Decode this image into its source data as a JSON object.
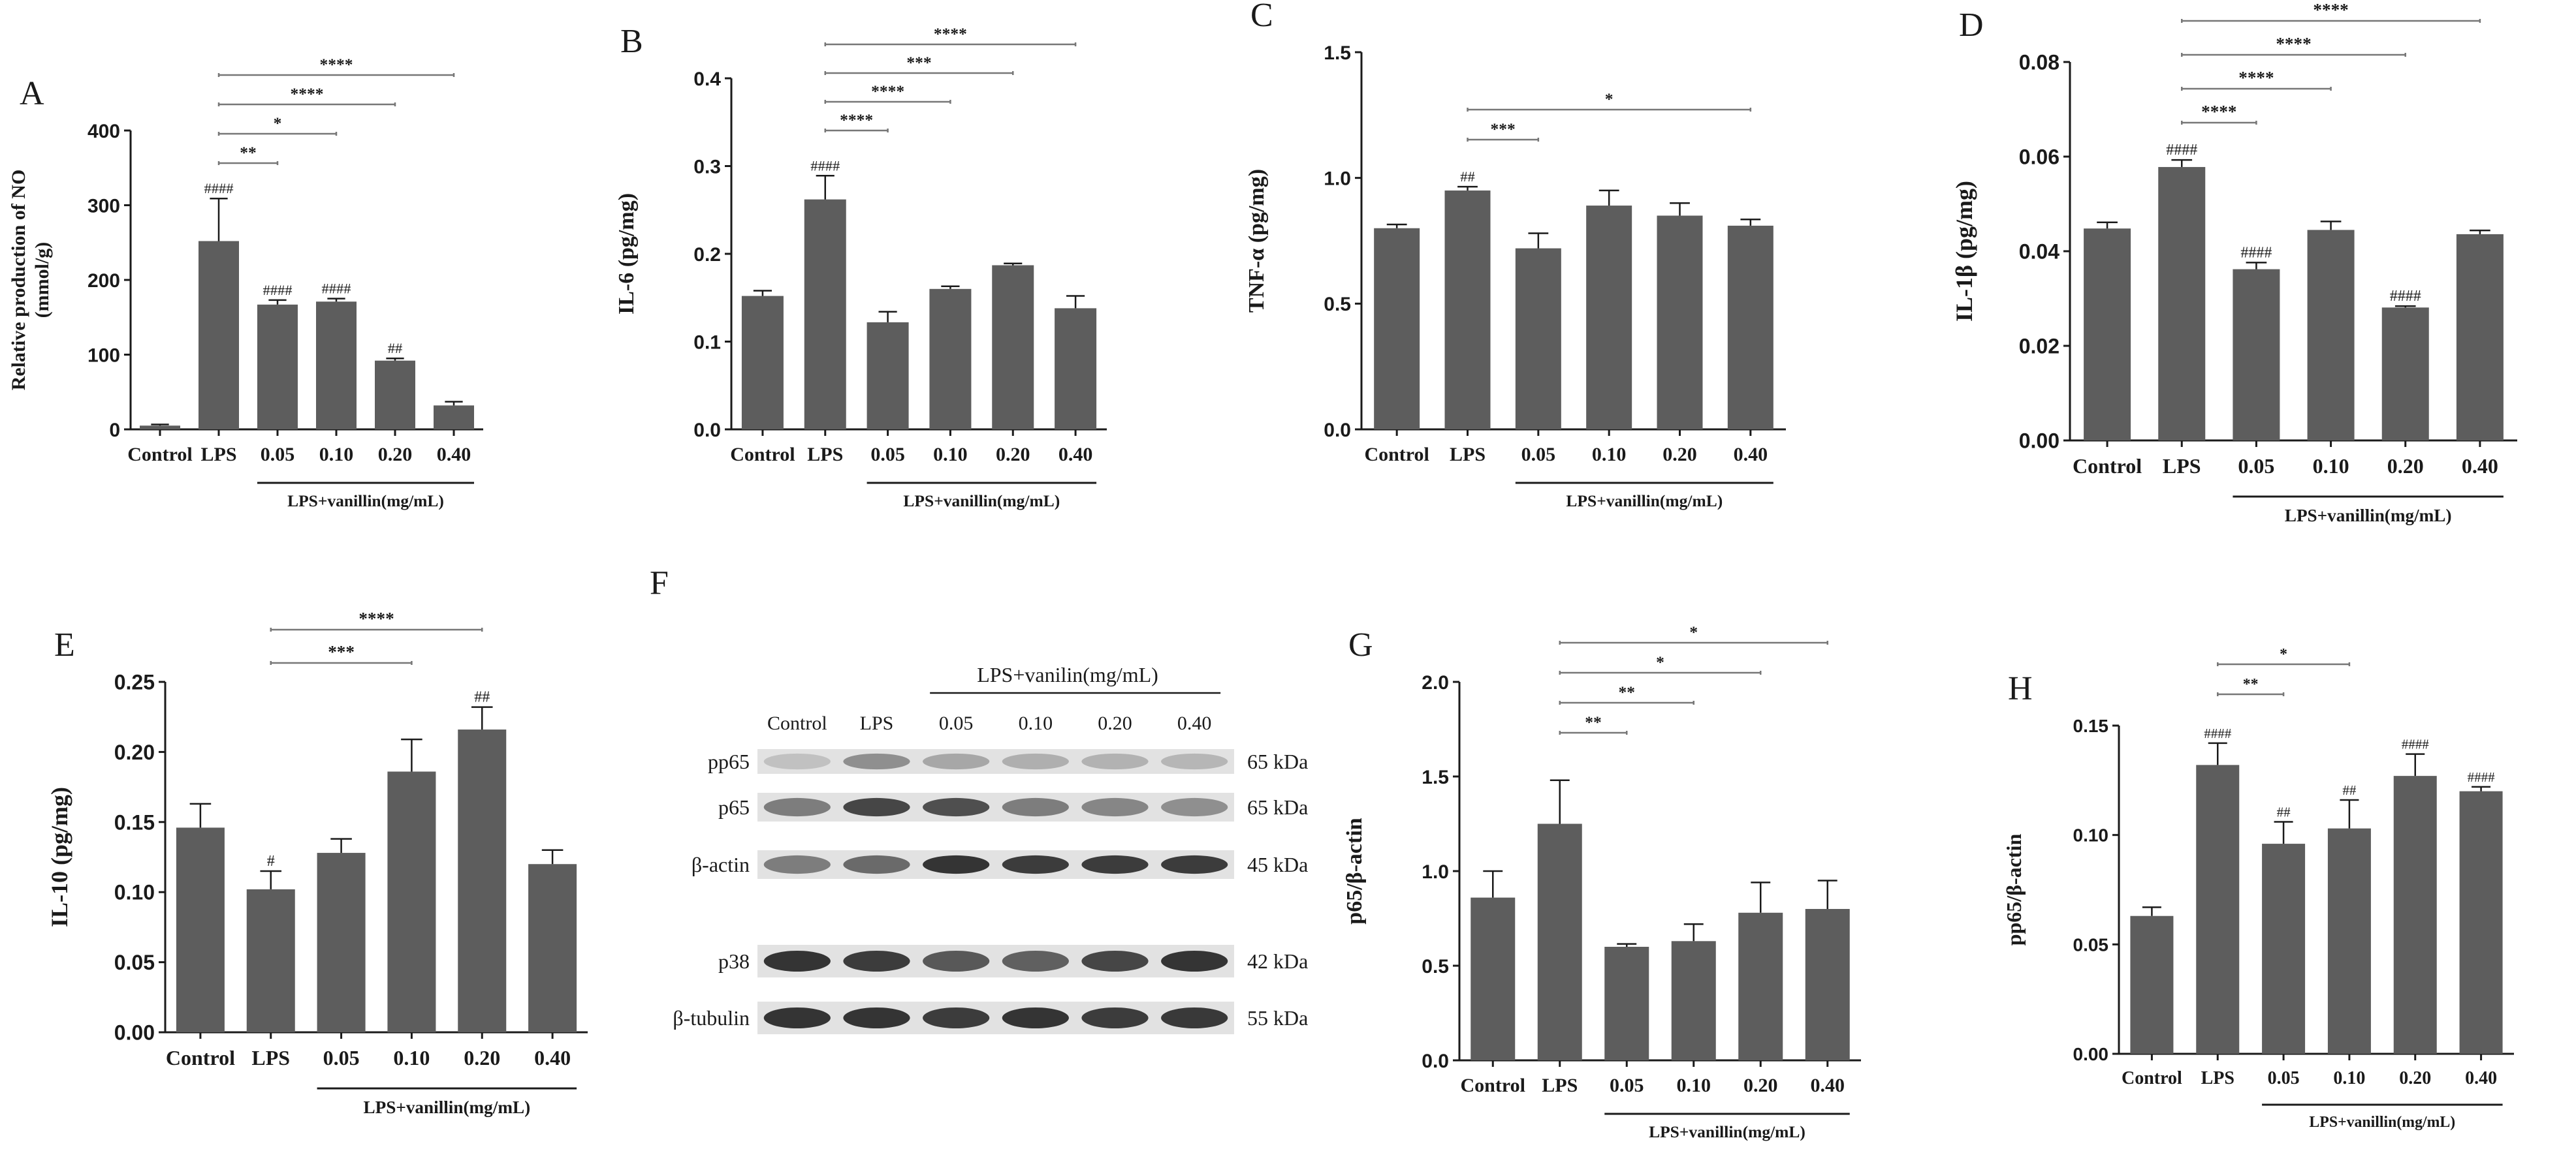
{
  "colors": {
    "bar": "#5d5d5d",
    "axis": "#1a1a1a",
    "sigline": "#777777",
    "blot_band": "#2a2a2a",
    "blot_bg": "#e2e2e2"
  },
  "groups": [
    "Control",
    "LPS",
    "0.05",
    "0.10",
    "0.20",
    "0.40"
  ],
  "treatment_label": "LPS+vanillin(mg/mL)",
  "chart_data": [
    {
      "id": "A",
      "type": "bar",
      "panel_label": "A",
      "ylabel": "Relative production of NO",
      "ylabel2": "(mmol/g)",
      "ylim": [
        0,
        400
      ],
      "yticks": [
        "0",
        "100",
        "200",
        "300",
        "400"
      ],
      "values": [
        5,
        252,
        167,
        171,
        92,
        32
      ],
      "errors": [
        1.5,
        57,
        6,
        4,
        3,
        5
      ],
      "hash": [
        "",
        "####",
        "####",
        "####",
        "##",
        ""
      ],
      "sig": [
        {
          "from": 1,
          "to": 2,
          "text": "**"
        },
        {
          "from": 1,
          "to": 3,
          "text": "*"
        },
        {
          "from": 1,
          "to": 4,
          "text": "****"
        },
        {
          "from": 1,
          "to": 5,
          "text": "****"
        }
      ]
    },
    {
      "id": "B",
      "type": "bar",
      "panel_label": "B",
      "ylabel": "IL-6 (pg/mg)",
      "ylim": [
        0,
        0.4
      ],
      "yticks": [
        "0.0",
        "0.1",
        "0.2",
        "0.3",
        "0.4"
      ],
      "values": [
        0.152,
        0.262,
        0.122,
        0.16,
        0.187,
        0.138
      ],
      "errors": [
        0.006,
        0.027,
        0.012,
        0.003,
        0.002,
        0.014
      ],
      "hash": [
        "",
        "####",
        "",
        "",
        "",
        ""
      ],
      "sig": [
        {
          "from": 1,
          "to": 2,
          "text": "****"
        },
        {
          "from": 1,
          "to": 3,
          "text": "****"
        },
        {
          "from": 1,
          "to": 4,
          "text": "***"
        },
        {
          "from": 1,
          "to": 5,
          "text": "****"
        }
      ]
    },
    {
      "id": "C",
      "type": "bar",
      "panel_label": "C",
      "ylabel": "TNF-α (pg/mg)",
      "ylim": [
        0,
        1.5
      ],
      "yticks": [
        "0.0",
        "0.5",
        "1.0",
        "1.5"
      ],
      "values": [
        0.8,
        0.95,
        0.72,
        0.89,
        0.85,
        0.81
      ],
      "errors": [
        0.015,
        0.015,
        0.06,
        0.06,
        0.05,
        0.025
      ],
      "hash": [
        "",
        "##",
        "",
        "",
        "",
        ""
      ],
      "sig": [
        {
          "from": 1,
          "to": 2,
          "text": "***"
        },
        {
          "from": 1,
          "to": 5,
          "text": "*"
        }
      ]
    },
    {
      "id": "D",
      "type": "bar",
      "panel_label": "D",
      "ylabel": "IL-1β (pg/mg)",
      "ylim": [
        0,
        0.08
      ],
      "yticks": [
        "0.00",
        "0.02",
        "0.04",
        "0.06",
        "0.08"
      ],
      "values": [
        0.0448,
        0.0578,
        0.0362,
        0.0445,
        0.0281,
        0.0436
      ],
      "errors": [
        0.0013,
        0.0015,
        0.0014,
        0.0018,
        0.0003,
        0.0008
      ],
      "hash": [
        "",
        "####",
        "####",
        "",
        "####",
        ""
      ],
      "sig": [
        {
          "from": 1,
          "to": 2,
          "text": "****"
        },
        {
          "from": 1,
          "to": 3,
          "text": "****"
        },
        {
          "from": 1,
          "to": 4,
          "text": "****"
        },
        {
          "from": 1,
          "to": 5,
          "text": "****"
        }
      ]
    },
    {
      "id": "E",
      "type": "bar",
      "panel_label": "E",
      "ylabel": "IL-10 (pg/mg)",
      "ylim": [
        0,
        0.25
      ],
      "yticks": [
        "0.00",
        "0.05",
        "0.10",
        "0.15",
        "0.20",
        "0.25"
      ],
      "values": [
        0.146,
        0.102,
        0.128,
        0.186,
        0.216,
        0.12
      ],
      "errors": [
        0.017,
        0.013,
        0.01,
        0.023,
        0.016,
        0.01
      ],
      "hash": [
        "",
        "#",
        "",
        "",
        "##",
        ""
      ],
      "sig": [
        {
          "from": 1,
          "to": 3,
          "text": "***"
        },
        {
          "from": 1,
          "to": 4,
          "text": "****"
        }
      ]
    },
    {
      "id": "G",
      "type": "bar",
      "panel_label": "G",
      "ylabel": "p65/β-actin",
      "ylim": [
        0,
        2.0
      ],
      "yticks": [
        "0.0",
        "0.5",
        "1.0",
        "1.5",
        "2.0"
      ],
      "values": [
        0.86,
        1.25,
        0.6,
        0.63,
        0.78,
        0.8
      ],
      "errors": [
        0.14,
        0.23,
        0.015,
        0.09,
        0.16,
        0.15
      ],
      "hash": [
        "",
        "",
        "",
        "",
        "",
        ""
      ],
      "sig": [
        {
          "from": 1,
          "to": 2,
          "text": "**"
        },
        {
          "from": 1,
          "to": 3,
          "text": "**"
        },
        {
          "from": 1,
          "to": 4,
          "text": "*"
        },
        {
          "from": 1,
          "to": 5,
          "text": "*"
        }
      ]
    },
    {
      "id": "H",
      "type": "bar",
      "panel_label": "H",
      "ylabel": "pp65/β-actin",
      "ylim": [
        0,
        0.15
      ],
      "yticks": [
        "0.00",
        "0.05",
        "0.10",
        "0.15"
      ],
      "values": [
        0.063,
        0.132,
        0.096,
        0.103,
        0.127,
        0.12
      ],
      "errors": [
        0.004,
        0.01,
        0.01,
        0.013,
        0.01,
        0.002
      ],
      "hash": [
        "",
        "####",
        "##",
        "##",
        "####",
        "####"
      ],
      "sig": [
        {
          "from": 1,
          "to": 2,
          "text": "**"
        },
        {
          "from": 1,
          "to": 3,
          "text": "*"
        }
      ]
    }
  ],
  "blot": {
    "panel_label": "F",
    "header": "LPS+vanilin(mg/mL)",
    "lanes": [
      "Control",
      "LPS",
      "0.05",
      "0.10",
      "0.20",
      "0.40"
    ],
    "rows": [
      {
        "name": "pp65",
        "kda": "65 kDa",
        "intensity": [
          0.18,
          0.45,
          0.32,
          0.28,
          0.26,
          0.24
        ]
      },
      {
        "name": "p65",
        "kda": "65 kDa",
        "intensity": [
          0.55,
          0.85,
          0.8,
          0.55,
          0.5,
          0.45
        ]
      },
      {
        "name": "β-actin",
        "kda": "45 kDa",
        "intensity": [
          0.55,
          0.65,
          0.95,
          0.9,
          0.9,
          0.9
        ]
      },
      {
        "name": "p38",
        "kda": "42 kDa",
        "intensity": [
          0.95,
          0.9,
          0.75,
          0.7,
          0.85,
          0.95
        ]
      },
      {
        "name": "β-tubulin",
        "kda": "55 kDa",
        "intensity": [
          0.95,
          0.95,
          0.9,
          0.95,
          0.9,
          0.92
        ]
      }
    ]
  }
}
